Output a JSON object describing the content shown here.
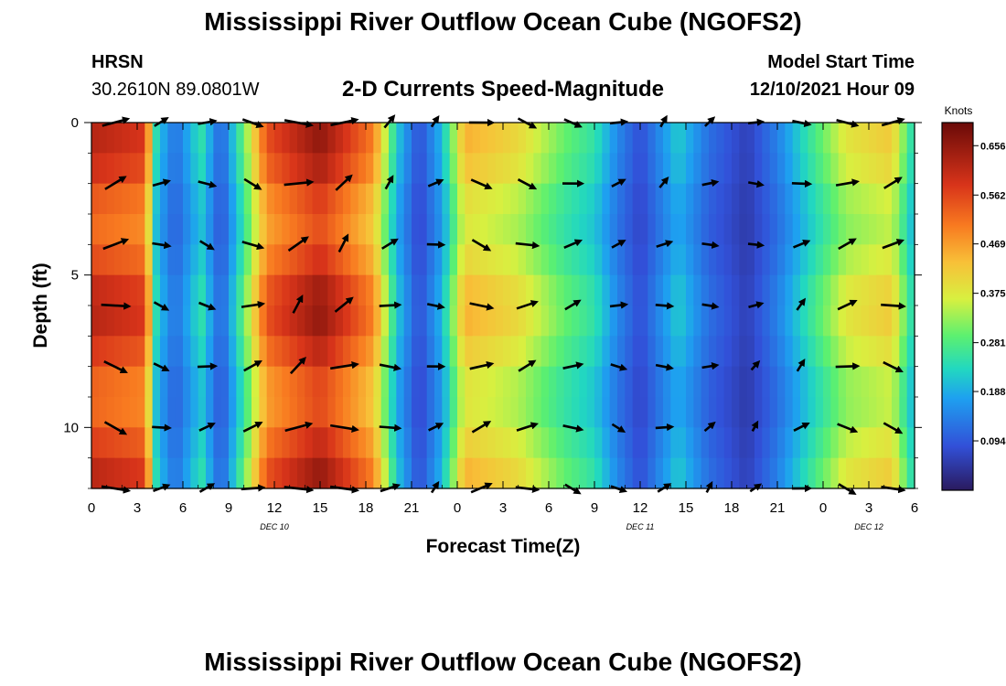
{
  "header": {
    "title_top": "Mississippi River Outflow Ocean Cube (NGOFS2)",
    "title_bottom": "Mississippi River Outflow Ocean Cube (NGOFS2)",
    "station": "HRSN",
    "coords": "30.2610N  89.0801W",
    "model_start_label": "Model Start Time",
    "model_start_value": "12/10/2021 Hour 09"
  },
  "chart_data": {
    "type": "heatmap",
    "title": "2-D Currents Speed-Magnitude",
    "xlabel": "Forecast Time(Z)",
    "ylabel": "Depth (ft)",
    "x_tick_labels": [
      "0",
      "3",
      "6",
      "9",
      "12",
      "15",
      "18",
      "21",
      "0",
      "3",
      "6",
      "9",
      "12",
      "15",
      "18",
      "21",
      "0",
      "3",
      "6"
    ],
    "x_range_hours": [
      0,
      54
    ],
    "date_labels": [
      {
        "text": "DEC 10",
        "hour": 12
      },
      {
        "text": "DEC 11",
        "hour": 36
      },
      {
        "text": "DEC 12",
        "hour": 51
      }
    ],
    "y_tick_labels": [
      "0",
      "5",
      "10"
    ],
    "y_range_ft": [
      0,
      12
    ],
    "y_inverted": true,
    "colorbar": {
      "unit": "Knots",
      "ticks": [
        "0.656",
        "0.562",
        "0.469",
        "0.375",
        "0.281",
        "0.188",
        "0.094"
      ],
      "range": [
        0.0,
        0.7
      ]
    },
    "speed_profile": [
      {
        "hour": 0,
        "speed": 0.62
      },
      {
        "hour": 3.5,
        "speed": 0.58
      },
      {
        "hour": 4.3,
        "speed": 0.22
      },
      {
        "hour": 5.5,
        "speed": 0.12
      },
      {
        "hour": 7.2,
        "speed": 0.25
      },
      {
        "hour": 8.5,
        "speed": 0.1
      },
      {
        "hour": 10,
        "speed": 0.3
      },
      {
        "hour": 11.5,
        "speed": 0.55
      },
      {
        "hour": 15,
        "speed": 0.66
      },
      {
        "hour": 18.5,
        "speed": 0.5
      },
      {
        "hour": 20,
        "speed": 0.22
      },
      {
        "hour": 21.5,
        "speed": 0.08
      },
      {
        "hour": 23,
        "speed": 0.2
      },
      {
        "hour": 24.5,
        "speed": 0.45
      },
      {
        "hour": 28,
        "speed": 0.4
      },
      {
        "hour": 31,
        "speed": 0.3
      },
      {
        "hour": 33,
        "speed": 0.25
      },
      {
        "hour": 34.5,
        "speed": 0.15
      },
      {
        "hour": 36,
        "speed": 0.08
      },
      {
        "hour": 38.5,
        "speed": 0.22
      },
      {
        "hour": 40.5,
        "speed": 0.12
      },
      {
        "hour": 43,
        "speed": 0.06
      },
      {
        "hour": 45,
        "speed": 0.14
      },
      {
        "hour": 47,
        "speed": 0.25
      },
      {
        "hour": 49.5,
        "speed": 0.38
      },
      {
        "hour": 52.5,
        "speed": 0.42
      },
      {
        "hour": 54,
        "speed": 0.22
      }
    ],
    "vector_rows_ft": [
      0,
      2,
      4,
      6,
      8,
      10,
      12
    ]
  }
}
